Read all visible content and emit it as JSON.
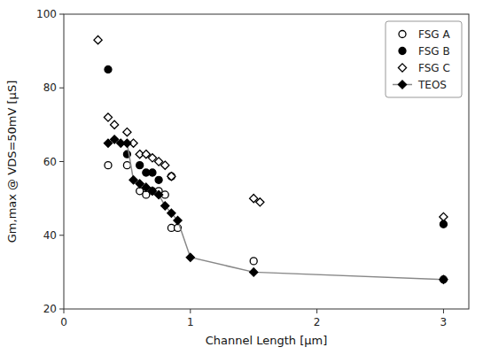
{
  "chart_data": {
    "type": "scatter",
    "xlabel": "Channel Length [μm]",
    "ylabel": "Gm,max @ VDS=50mV [μS]",
    "xlim": [
      0.0,
      3.2
    ],
    "ylim": [
      20,
      100
    ],
    "xticks": [
      0,
      1,
      2,
      3
    ],
    "yticks": [
      20,
      40,
      60,
      80,
      100
    ],
    "grid": false,
    "legend": "top-right",
    "series": [
      {
        "name": "FSG A",
        "type": "scatter",
        "marker": "circle-open",
        "color": "#000000",
        "x": [
          0.35,
          0.5,
          0.6,
          0.65,
          0.7,
          0.75,
          0.8,
          0.85,
          0.9,
          1.5,
          3.0
        ],
        "values": [
          59,
          59,
          52,
          51,
          52,
          52,
          51,
          42,
          42,
          33,
          28
        ]
      },
      {
        "name": "FSG B",
        "type": "scatter",
        "marker": "circle-filled",
        "color": "#000000",
        "x": [
          0.35,
          0.5,
          0.6,
          0.65,
          0.7,
          0.75,
          0.85,
          3.0
        ],
        "values": [
          85,
          62,
          59,
          57,
          57,
          55,
          56,
          43
        ]
      },
      {
        "name": "FSG C",
        "type": "scatter",
        "marker": "diamond-open",
        "color": "#000000",
        "x": [
          0.27,
          0.35,
          0.4,
          0.5,
          0.55,
          0.6,
          0.65,
          0.7,
          0.75,
          0.8,
          0.85,
          1.5,
          1.55,
          3.0
        ],
        "values": [
          93,
          72,
          70,
          68,
          65,
          62,
          62,
          61,
          60,
          59,
          56,
          50,
          49,
          45
        ]
      },
      {
        "name": "TEOS",
        "type": "line",
        "marker": "diamond-filled",
        "line_style": "solid",
        "color": "#888888",
        "x": [
          0.35,
          0.4,
          0.45,
          0.5,
          0.55,
          0.6,
          0.65,
          0.7,
          0.75,
          0.8,
          0.85,
          0.9,
          1.0,
          1.5,
          3.0
        ],
        "values": [
          65,
          66,
          65,
          65,
          55,
          54,
          53,
          52,
          51,
          48,
          46,
          44,
          34,
          30,
          28
        ]
      }
    ]
  }
}
